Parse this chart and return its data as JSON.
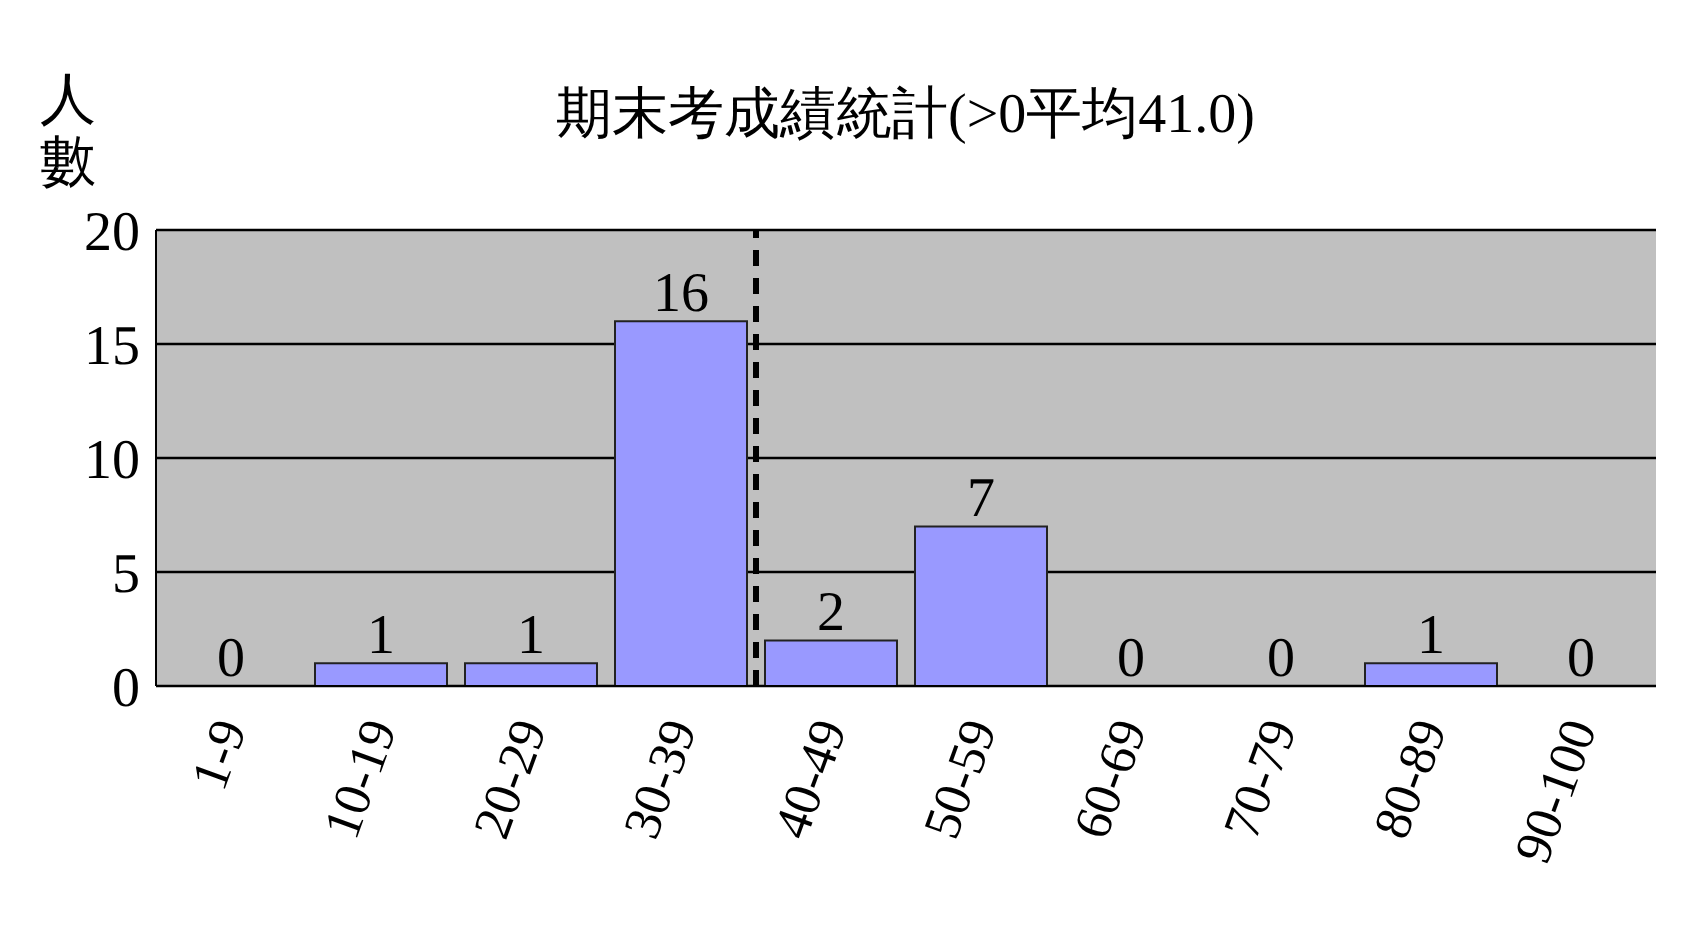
{
  "chart_data": {
    "type": "bar",
    "title": "期末考成績統計(>0平均41.0)",
    "ylabel": "人數",
    "categories": [
      "1-9",
      "10-19",
      "20-29",
      "30-39",
      "40-49",
      "50-59",
      "60-69",
      "70-79",
      "80-89",
      "90-100"
    ],
    "values": [
      0,
      1,
      1,
      16,
      2,
      7,
      0,
      0,
      1,
      0
    ],
    "color": "#9999ff",
    "ylim": [
      0,
      20
    ],
    "yticks": [
      0,
      5,
      10,
      15,
      20
    ],
    "grid": "y",
    "data_labels": true,
    "ref_lines": [
      {
        "axis": "x",
        "value": "40-49",
        "line_style": "dashed",
        "color": "#000000"
      }
    ]
  }
}
